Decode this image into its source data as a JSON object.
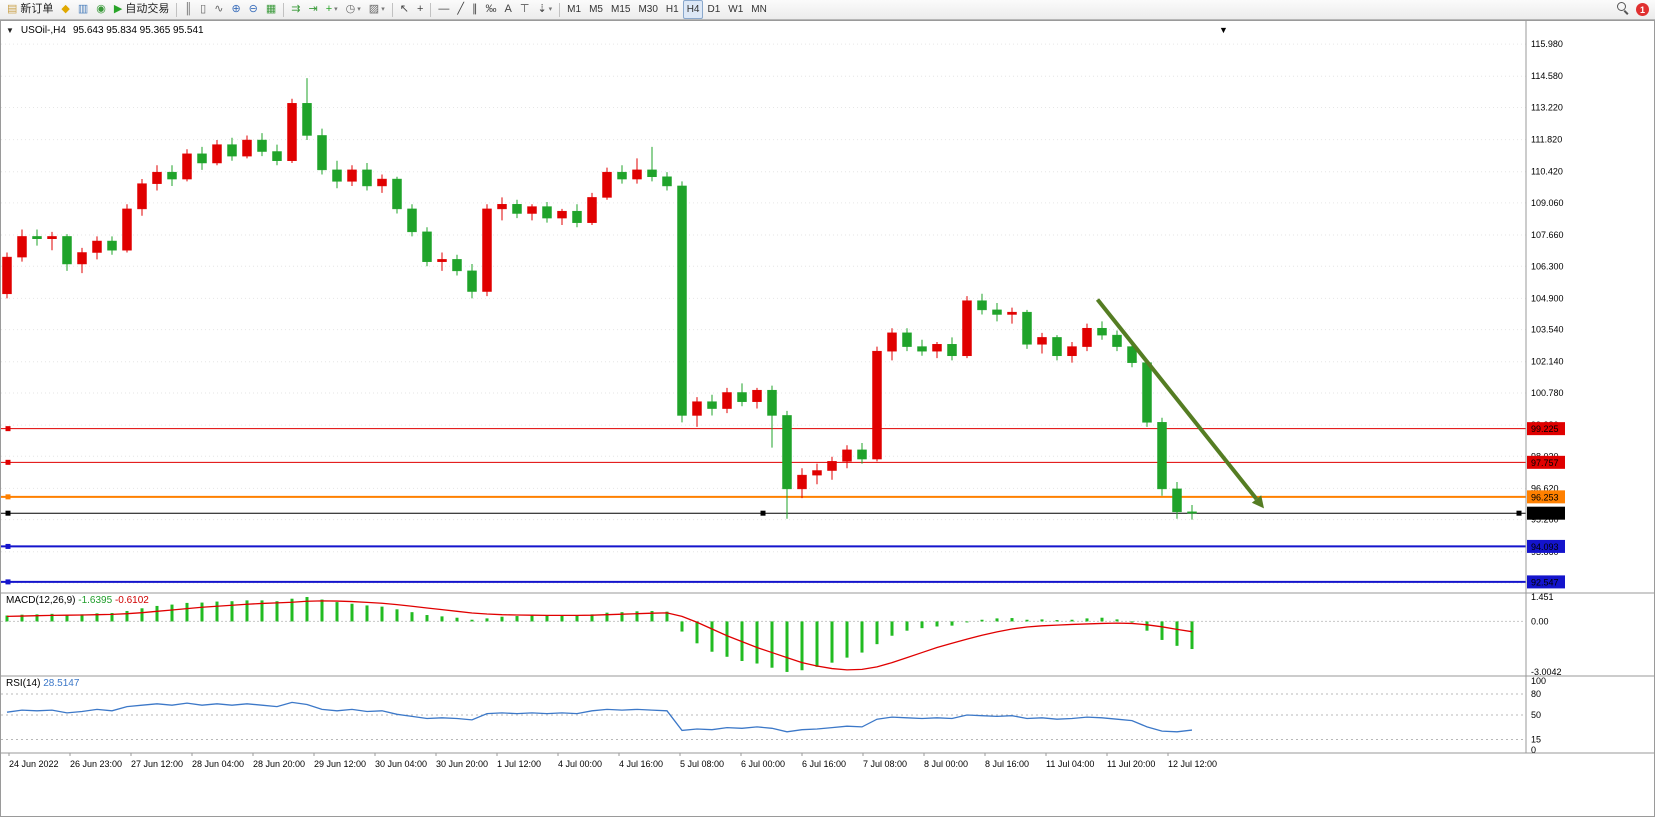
{
  "toolbar": {
    "groups": [
      {
        "buttons": [
          {
            "name": "new-order-button",
            "glyph": "▤",
            "color": "#caa24a",
            "label": "新订单"
          },
          {
            "name": "metaeditor-button",
            "glyph": "◆",
            "color": "#e0a800"
          },
          {
            "name": "market-watch-button",
            "glyph": "▥",
            "color": "#4a7ebb"
          },
          {
            "name": "sounds-button",
            "glyph": "◉",
            "color": "#3a9a3a"
          },
          {
            "name": "auto-trading-button",
            "glyph": "▶",
            "color": "#2aa52a",
            "label": "自动交易"
          }
        ]
      },
      {
        "buttons": [
          {
            "name": "bar-chart-button",
            "glyph": "║",
            "color": "#666666"
          },
          {
            "name": "candlestick-chart-button",
            "glyph": "▯",
            "color": "#666666"
          },
          {
            "name": "line-chart-button",
            "glyph": "∿",
            "color": "#666666"
          },
          {
            "name": "zoom-in-button",
            "glyph": "⊕",
            "color": "#3a6ebb"
          },
          {
            "name": "zoom-out-button",
            "glyph": "⊖",
            "color": "#3a6ebb"
          },
          {
            "name": "tile-windows-button",
            "glyph": "▦",
            "color": "#3a9a3a"
          }
        ]
      },
      {
        "buttons": [
          {
            "name": "auto-scroll-button",
            "glyph": "⇉",
            "color": "#3a9a3a"
          },
          {
            "name": "chart-shift-button",
            "glyph": "⇥",
            "color": "#3a9a3a"
          },
          {
            "name": "indicators-button",
            "glyph": "+",
            "color": "#2aa52a",
            "dropdown": true
          },
          {
            "name": "periods-button",
            "glyph": "◷",
            "color": "#666666",
            "dropdown": true
          },
          {
            "name": "templates-button",
            "glyph": "▨",
            "color": "#666666",
            "dropdown": true
          }
        ]
      },
      {
        "buttons": [
          {
            "name": "cursor-button",
            "glyph": "↖",
            "color": "#444444"
          },
          {
            "name": "crosshair-button",
            "glyph": "+",
            "color": "#444444"
          }
        ]
      },
      {
        "buttons": [
          {
            "name": "hline-button",
            "glyph": "—",
            "color": "#444444"
          },
          {
            "name": "trendline-button",
            "glyph": "╱",
            "color": "#444444"
          },
          {
            "name": "channel-button",
            "glyph": "∥",
            "color": "#444444"
          },
          {
            "name": "fibonacci-button",
            "glyph": "‰",
            "color": "#444444"
          },
          {
            "name": "text-button",
            "glyph": "A",
            "color": "#444444"
          },
          {
            "name": "label-button",
            "glyph": "⊤",
            "color": "#444444"
          },
          {
            "name": "arrows-button",
            "glyph": "⇣",
            "color": "#444444",
            "dropdown": true
          }
        ]
      }
    ],
    "timeframes": [
      "M1",
      "M5",
      "M15",
      "M30",
      "H1",
      "H4",
      "D1",
      "W1",
      "MN"
    ],
    "active_timeframe": "H4",
    "notification_count": "1"
  },
  "chart": {
    "dropdown_marker": "▼",
    "symbol": "USOil-,H4",
    "ohlc": "95.643 95.834 95.365 95.541",
    "top_marker": "▼"
  },
  "macd": {
    "name": "MACD(12,26,9)",
    "main_value": "-1.6395",
    "signal_value": "-0.6102"
  },
  "rsi": {
    "name": "RSI(14)",
    "value": "28.5147"
  },
  "chart_data": {
    "type": "candlestick",
    "symbol": "USOil-",
    "timeframe": "H4",
    "current": {
      "open": 95.643,
      "high": 95.834,
      "low": 95.365,
      "close": 95.541
    },
    "colors": {
      "up": "#e00000",
      "down": "#1fa32a",
      "macd_hist": "#22bb22",
      "macd_signal": "#e00000",
      "rsi_line": "#3c78c8",
      "arrow": "#557d23"
    },
    "price_axis_labels": [
      "115.980",
      "114.580",
      "113.220",
      "111.820",
      "110.420",
      "109.060",
      "107.660",
      "106.300",
      "104.900",
      "103.540",
      "102.140",
      "100.780",
      "99.380",
      "98.020",
      "96.620",
      "95.260",
      "93.860",
      "92.500"
    ],
    "hlines": [
      {
        "price": 99.225,
        "label": "99.225",
        "color": "#e00000",
        "width": 1
      },
      {
        "price": 97.757,
        "label": "97.757",
        "color": "#e00000",
        "width": 1
      },
      {
        "price": 96.253,
        "label": "96.253",
        "color": "#ff8000",
        "width": 2
      },
      {
        "price": 95.541,
        "label": "95.541",
        "color": "#000000",
        "width": 1,
        "handles": true
      },
      {
        "price": 94.093,
        "label": "94.093",
        "color": "#1414cc",
        "width": 2
      },
      {
        "price": 92.547,
        "label": "92.547",
        "color": "#1414cc",
        "width": 2
      }
    ],
    "trend_arrow": {
      "from_index": 72.7,
      "from_price": 104.85,
      "to_index": 83.8,
      "to_price": 95.75,
      "color": "#557d23",
      "width": 4
    },
    "candles": [
      [
        105.1,
        106.9,
        104.9,
        106.7
      ],
      [
        106.7,
        107.9,
        106.5,
        107.6
      ],
      [
        107.6,
        107.9,
        107.2,
        107.5
      ],
      [
        107.5,
        107.8,
        107.0,
        107.6
      ],
      [
        107.6,
        107.7,
        106.1,
        106.4
      ],
      [
        106.4,
        107.1,
        106.0,
        106.9
      ],
      [
        106.9,
        107.6,
        106.6,
        107.4
      ],
      [
        107.4,
        107.6,
        106.8,
        107.0
      ],
      [
        107.0,
        109.0,
        106.9,
        108.8
      ],
      [
        108.8,
        110.1,
        108.5,
        109.9
      ],
      [
        109.9,
        110.7,
        109.6,
        110.4
      ],
      [
        110.4,
        110.7,
        109.8,
        110.1
      ],
      [
        110.1,
        111.4,
        110.0,
        111.2
      ],
      [
        111.2,
        111.5,
        110.5,
        110.8
      ],
      [
        110.8,
        111.8,
        110.7,
        111.6
      ],
      [
        111.6,
        111.9,
        110.9,
        111.1
      ],
      [
        111.1,
        112.0,
        111.0,
        111.8
      ],
      [
        111.8,
        112.1,
        111.1,
        111.3
      ],
      [
        111.3,
        111.6,
        110.7,
        110.9
      ],
      [
        110.9,
        113.6,
        110.8,
        113.4
      ],
      [
        113.4,
        114.5,
        111.8,
        112.0
      ],
      [
        112.0,
        112.3,
        110.3,
        110.5
      ],
      [
        110.5,
        110.9,
        109.7,
        110.0
      ],
      [
        110.0,
        110.7,
        109.8,
        110.5
      ],
      [
        110.5,
        110.8,
        109.6,
        109.8
      ],
      [
        109.8,
        110.3,
        109.5,
        110.1
      ],
      [
        110.1,
        110.2,
        108.6,
        108.8
      ],
      [
        108.8,
        109.0,
        107.6,
        107.8
      ],
      [
        107.8,
        108.0,
        106.3,
        106.5
      ],
      [
        106.5,
        106.9,
        106.1,
        106.6
      ],
      [
        106.6,
        106.8,
        105.9,
        106.1
      ],
      [
        106.1,
        106.4,
        104.9,
        105.2
      ],
      [
        105.2,
        109.0,
        105.0,
        108.8
      ],
      [
        108.8,
        109.3,
        108.3,
        109.0
      ],
      [
        109.0,
        109.2,
        108.4,
        108.6
      ],
      [
        108.6,
        109.0,
        108.3,
        108.9
      ],
      [
        108.9,
        109.1,
        108.2,
        108.4
      ],
      [
        108.4,
        108.8,
        108.1,
        108.7
      ],
      [
        108.7,
        109.0,
        108.0,
        108.2
      ],
      [
        108.2,
        109.5,
        108.1,
        109.3
      ],
      [
        109.3,
        110.6,
        109.2,
        110.4
      ],
      [
        110.4,
        110.7,
        109.9,
        110.1
      ],
      [
        110.1,
        111.0,
        109.9,
        110.5
      ],
      [
        110.5,
        111.5,
        110.0,
        110.2
      ],
      [
        110.2,
        110.4,
        109.6,
        109.8
      ],
      [
        109.8,
        110.0,
        99.5,
        99.8
      ],
      [
        99.8,
        100.6,
        99.3,
        100.4
      ],
      [
        100.4,
        100.7,
        99.8,
        100.1
      ],
      [
        100.1,
        101.0,
        99.9,
        100.8
      ],
      [
        100.8,
        101.2,
        100.2,
        100.4
      ],
      [
        100.4,
        101.0,
        100.1,
        100.9
      ],
      [
        100.9,
        101.1,
        98.4,
        99.8
      ],
      [
        99.8,
        100.0,
        95.3,
        96.6
      ],
      [
        96.6,
        97.5,
        96.2,
        97.2
      ],
      [
        97.2,
        97.7,
        96.8,
        97.4
      ],
      [
        97.4,
        98.0,
        97.0,
        97.8
      ],
      [
        97.8,
        98.5,
        97.5,
        98.3
      ],
      [
        98.3,
        98.6,
        97.7,
        97.9
      ],
      [
        97.9,
        102.8,
        97.8,
        102.6
      ],
      [
        102.6,
        103.6,
        102.2,
        103.4
      ],
      [
        103.4,
        103.6,
        102.6,
        102.8
      ],
      [
        102.8,
        103.1,
        102.4,
        102.6
      ],
      [
        102.6,
        103.0,
        102.3,
        102.9
      ],
      [
        102.9,
        103.2,
        102.2,
        102.4
      ],
      [
        102.4,
        105.0,
        102.3,
        104.8
      ],
      [
        104.8,
        105.1,
        104.2,
        104.4
      ],
      [
        104.4,
        104.7,
        103.9,
        104.2
      ],
      [
        104.2,
        104.5,
        103.8,
        104.3
      ],
      [
        104.3,
        104.4,
        102.7,
        102.9
      ],
      [
        102.9,
        103.4,
        102.5,
        103.2
      ],
      [
        103.2,
        103.3,
        102.2,
        102.4
      ],
      [
        102.4,
        103.0,
        102.1,
        102.8
      ],
      [
        102.8,
        103.8,
        102.6,
        103.6
      ],
      [
        103.6,
        103.9,
        103.1,
        103.3
      ],
      [
        103.3,
        103.5,
        102.6,
        102.8
      ],
      [
        102.8,
        102.9,
        101.9,
        102.1
      ],
      [
        102.1,
        102.2,
        99.3,
        99.5
      ],
      [
        99.5,
        99.7,
        96.3,
        96.6
      ],
      [
        96.6,
        96.9,
        95.3,
        95.6
      ],
      [
        95.6,
        95.9,
        95.26,
        95.541
      ]
    ],
    "time_labels": [
      "24 Jun 2022",
      "26 Jun 23:00",
      "27 Jun 12:00",
      "28 Jun 04:00",
      "28 Jun 20:00",
      "29 Jun 12:00",
      "30 Jun 04:00",
      "30 Jun 20:00",
      "1 Jul 12:00",
      "4 Jul 00:00",
      "4 Jul 16:00",
      "5 Jul 08:00",
      "6 Jul 00:00",
      "6 Jul 16:00",
      "7 Jul 08:00",
      "8 Jul 00:00",
      "8 Jul 16:00",
      "11 Jul 04:00",
      "11 Jul 20:00",
      "12 Jul 12:00"
    ],
    "macd": {
      "axis_labels": [
        "1.451",
        "0.00",
        "-3.0042"
      ],
      "values": [
        0.35,
        0.4,
        0.42,
        0.45,
        0.4,
        0.42,
        0.48,
        0.5,
        0.62,
        0.78,
        0.92,
        1.0,
        1.1,
        1.12,
        1.18,
        1.2,
        1.25,
        1.25,
        1.2,
        1.35,
        1.45,
        1.3,
        1.15,
        1.05,
        0.95,
        0.88,
        0.72,
        0.55,
        0.38,
        0.3,
        0.22,
        0.1,
        0.18,
        0.28,
        0.32,
        0.35,
        0.35,
        0.36,
        0.35,
        0.42,
        0.52,
        0.55,
        0.6,
        0.62,
        0.58,
        -0.6,
        -1.3,
        -1.8,
        -2.1,
        -2.35,
        -2.5,
        -2.75,
        -3.0,
        -2.9,
        -2.7,
        -2.45,
        -2.15,
        -1.85,
        -1.35,
        -0.85,
        -0.55,
        -0.4,
        -0.3,
        -0.25,
        -0.05,
        0.1,
        0.18,
        0.2,
        0.1,
        0.12,
        0.08,
        0.1,
        0.18,
        0.22,
        0.12,
        -0.05,
        -0.55,
        -1.1,
        -1.45,
        -1.6395
      ],
      "signal": [
        0.3,
        0.32,
        0.34,
        0.36,
        0.37,
        0.38,
        0.4,
        0.42,
        0.46,
        0.52,
        0.6,
        0.68,
        0.76,
        0.84,
        0.9,
        0.96,
        1.02,
        1.07,
        1.1,
        1.14,
        1.2,
        1.22,
        1.21,
        1.18,
        1.13,
        1.08,
        1.0,
        0.9,
        0.8,
        0.7,
        0.6,
        0.5,
        0.44,
        0.4,
        0.38,
        0.37,
        0.36,
        0.36,
        0.36,
        0.37,
        0.4,
        0.43,
        0.46,
        0.49,
        0.51,
        0.3,
        -0.05,
        -0.45,
        -0.85,
        -1.2,
        -1.55,
        -1.85,
        -2.15,
        -2.45,
        -2.65,
        -2.8,
        -2.88,
        -2.85,
        -2.7,
        -2.45,
        -2.15,
        -1.85,
        -1.55,
        -1.3,
        -1.05,
        -0.82,
        -0.62,
        -0.45,
        -0.33,
        -0.26,
        -0.22,
        -0.18,
        -0.15,
        -0.12,
        -0.1,
        -0.12,
        -0.2,
        -0.32,
        -0.47,
        -0.6102
      ]
    },
    "rsi": {
      "levels": [
        80,
        50,
        15
      ],
      "axis_labels": [
        "100",
        "80",
        "50",
        "15",
        "0"
      ],
      "values": [
        54,
        57,
        56,
        57,
        53,
        55,
        58,
        56,
        62,
        64,
        66,
        64,
        67,
        64,
        66,
        64,
        66,
        64,
        62,
        68,
        65,
        58,
        56,
        58,
        55,
        56,
        51,
        48,
        45,
        46,
        45,
        43,
        52,
        53,
        52,
        53,
        52,
        53,
        52,
        56,
        58,
        57,
        58,
        57,
        56,
        28,
        30,
        29,
        32,
        31,
        33,
        31,
        26,
        29,
        30,
        32,
        34,
        33,
        44,
        47,
        46,
        45,
        46,
        45,
        50,
        49,
        48,
        49,
        45,
        46,
        44,
        45,
        47,
        46,
        44,
        42,
        33,
        27,
        26,
        28.5
      ]
    }
  }
}
